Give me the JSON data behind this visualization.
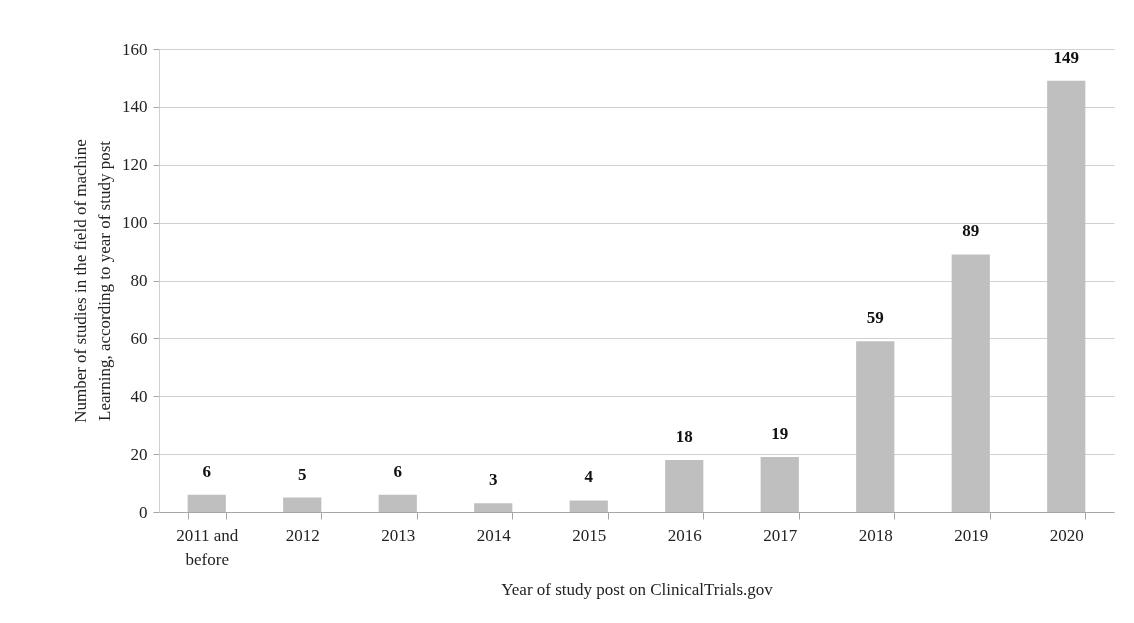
{
  "chart_data": {
    "type": "bar",
    "categories": [
      "2011 and\nbefore",
      "2012",
      "2013",
      "2014",
      "2015",
      "2016",
      "2017",
      "2018",
      "2019",
      "2020"
    ],
    "values": [
      6,
      5,
      6,
      3,
      4,
      18,
      19,
      59,
      89,
      149
    ],
    "color": "#bfbfbf",
    "xlabel": "Year of study post on ClinicalTrials.gov",
    "ylabel": "Number of studies in the field of machine\nLearning, according to year of study post",
    "ylim": [
      0,
      160
    ],
    "yticks": [
      0,
      20,
      40,
      60,
      80,
      100,
      120,
      140,
      160
    ],
    "grid": "y",
    "data_labels": true
  }
}
